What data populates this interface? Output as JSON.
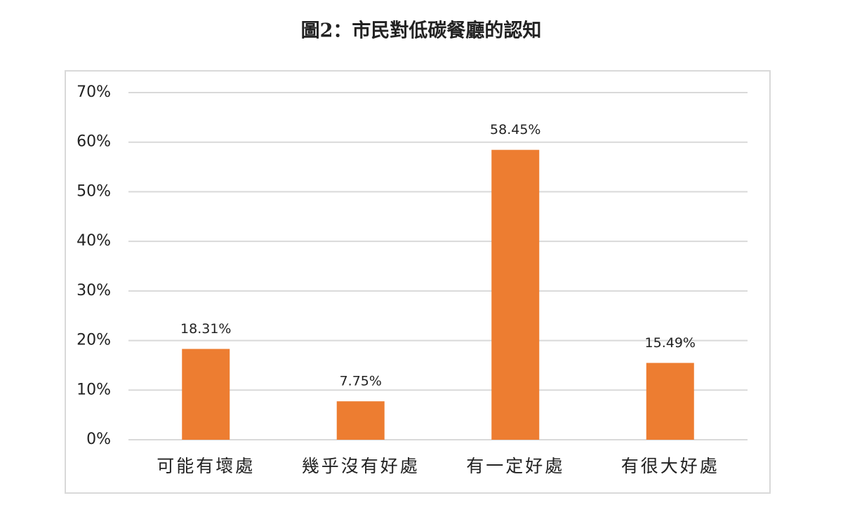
{
  "chart_data": {
    "type": "bar",
    "title": "圖2：市民對低碳餐廳的認知",
    "categories": [
      "可能有壞處",
      "幾乎沒有好處",
      "有一定好處",
      "有很大好處"
    ],
    "values": [
      18.31,
      7.75,
      58.45,
      15.49
    ],
    "value_labels": [
      "18.31%",
      "7.75%",
      "58.45%",
      "15.49%"
    ],
    "color": "#ed7d31",
    "ylim": [
      0,
      70
    ],
    "yticks": [
      {
        "value": 0,
        "label": "0%"
      },
      {
        "value": 10,
        "label": "10%"
      },
      {
        "value": 20,
        "label": "20%"
      },
      {
        "value": 30,
        "label": "30%"
      },
      {
        "value": 40,
        "label": "40%"
      },
      {
        "value": 50,
        "label": "50%"
      },
      {
        "value": 60,
        "label": "60%"
      },
      {
        "value": 70,
        "label": "70%"
      }
    ],
    "grid": true
  }
}
